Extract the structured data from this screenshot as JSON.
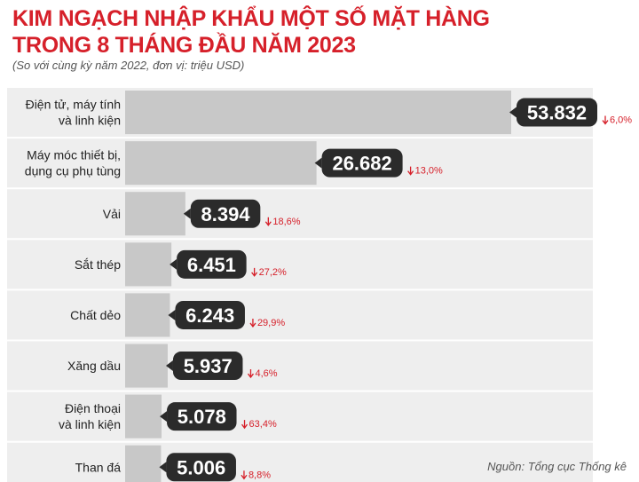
{
  "header": {
    "title_line1": "KIM NGẠCH NHẬP KHẨU MỘT SỐ MẶT HÀNG",
    "title_line2": "TRONG 8 THÁNG ĐẦU NĂM 2023",
    "subtitle": "(So với cùng kỳ năm 2022, đơn vị: triệu USD)"
  },
  "source": "Nguồn: Tổng cục Thống kê",
  "colors": {
    "title": "#d6202a",
    "bar": "#c8c8c8",
    "row_bg": "#eeeeee",
    "bubble": "#2b2b2b",
    "decrease": "#d6202a"
  },
  "chart_data": {
    "type": "bar",
    "orientation": "horizontal",
    "title": "KIM NGẠCH NHẬP KHẨU MỘT SỐ MẶT HÀNG TRONG 8 THÁNG ĐẦU NĂM 2023",
    "subtitle": "(So với cùng kỳ năm 2022, đơn vị: triệu USD)",
    "unit": "triệu USD",
    "categories": [
      [
        "Điện tử, máy tính",
        "và linh kiện"
      ],
      [
        "Máy móc thiết bị,",
        "dụng cụ phụ tùng"
      ],
      [
        "Vải"
      ],
      [
        "Sắt thép"
      ],
      [
        "Chất dẻo"
      ],
      [
        "Xăng dầu"
      ],
      [
        "Điện thoại",
        "và linh kiện"
      ],
      [
        "Than đá"
      ]
    ],
    "values": [
      53832,
      26682,
      8394,
      6451,
      6243,
      5937,
      5078,
      5006
    ],
    "value_labels": [
      "53.832",
      "26.682",
      "8.394",
      "6.451",
      "6.243",
      "5.937",
      "5.078",
      "5.006"
    ],
    "change_direction": "down",
    "changes": [
      "6,0%",
      "13,0%",
      "18,6%",
      "27,2%",
      "29,9%",
      "4,6%",
      "63,4%",
      "8,8%"
    ],
    "xlim": [
      0,
      53832
    ],
    "grid": false,
    "legend": "none"
  }
}
